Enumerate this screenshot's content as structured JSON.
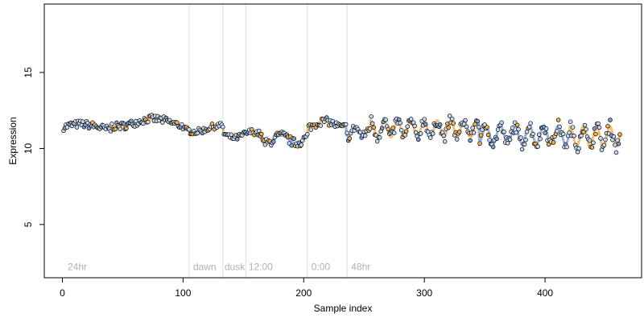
{
  "chart_data": {
    "type": "scatter",
    "xlabel": "Sample index",
    "ylabel": "Expression",
    "xlim": [
      -15,
      480
    ],
    "ylim": [
      1.5,
      19.5
    ],
    "x_ticks": [
      0,
      100,
      200,
      300,
      400
    ],
    "y_ticks": [
      5,
      10,
      15
    ],
    "vlines": [
      105,
      133,
      152,
      203,
      236
    ],
    "annotations": [
      {
        "text": "24hr",
        "x": 3
      },
      {
        "text": "dawn",
        "x": 107
      },
      {
        "text": "dusk",
        "x": 133
      },
      {
        "text": "12:00",
        "x": 153
      },
      {
        "text": "0:00",
        "x": 205
      },
      {
        "text": "48hr",
        "x": 238
      }
    ],
    "annotation_y": 2.0,
    "colors": {
      "point_light": "#c6d8ef",
      "point_orange": "#f0b04a",
      "point_blue": "#7a9fd4",
      "point_edge": "#000000",
      "fit_blue": "#6f8fc8",
      "fit_orange": "#e9a13c",
      "vline": "#dddddd",
      "annotation": "#b0b0b0"
    },
    "segments": [
      {
        "x0": 1,
        "x1": 40,
        "base": 11.4,
        "amp": 0.2,
        "period": 60,
        "noise": 0.25
      },
      {
        "x0": 40,
        "x1": 100,
        "base": 11.7,
        "amp": 0.25,
        "period": 60,
        "noise": 0.25
      },
      {
        "x0": 100,
        "x1": 133,
        "base": 11.3,
        "amp": 0.2,
        "period": 40,
        "noise": 0.2
      },
      {
        "x0": 133,
        "x1": 165,
        "base": 10.9,
        "amp": 0.2,
        "period": 30,
        "noise": 0.2
      },
      {
        "x0": 165,
        "x1": 203,
        "base": 10.6,
        "amp": 0.25,
        "period": 25,
        "noise": 0.3
      },
      {
        "x0": 203,
        "x1": 235,
        "base": 11.6,
        "amp": 0.2,
        "period": 30,
        "noise": 0.25
      },
      {
        "x0": 235,
        "x1": 255,
        "base": 11.1,
        "amp": 0.3,
        "period": 12,
        "noise": 0.3
      },
      {
        "x0": 255,
        "x1": 345,
        "base": 11.3,
        "amp": 0.55,
        "period": 11,
        "noise": 0.35
      },
      {
        "x0": 345,
        "x1": 420,
        "base": 10.9,
        "amp": 0.6,
        "period": 12,
        "noise": 0.4
      },
      {
        "x0": 420,
        "x1": 462,
        "base": 10.8,
        "amp": 0.65,
        "period": 11,
        "noise": 0.45
      }
    ]
  }
}
